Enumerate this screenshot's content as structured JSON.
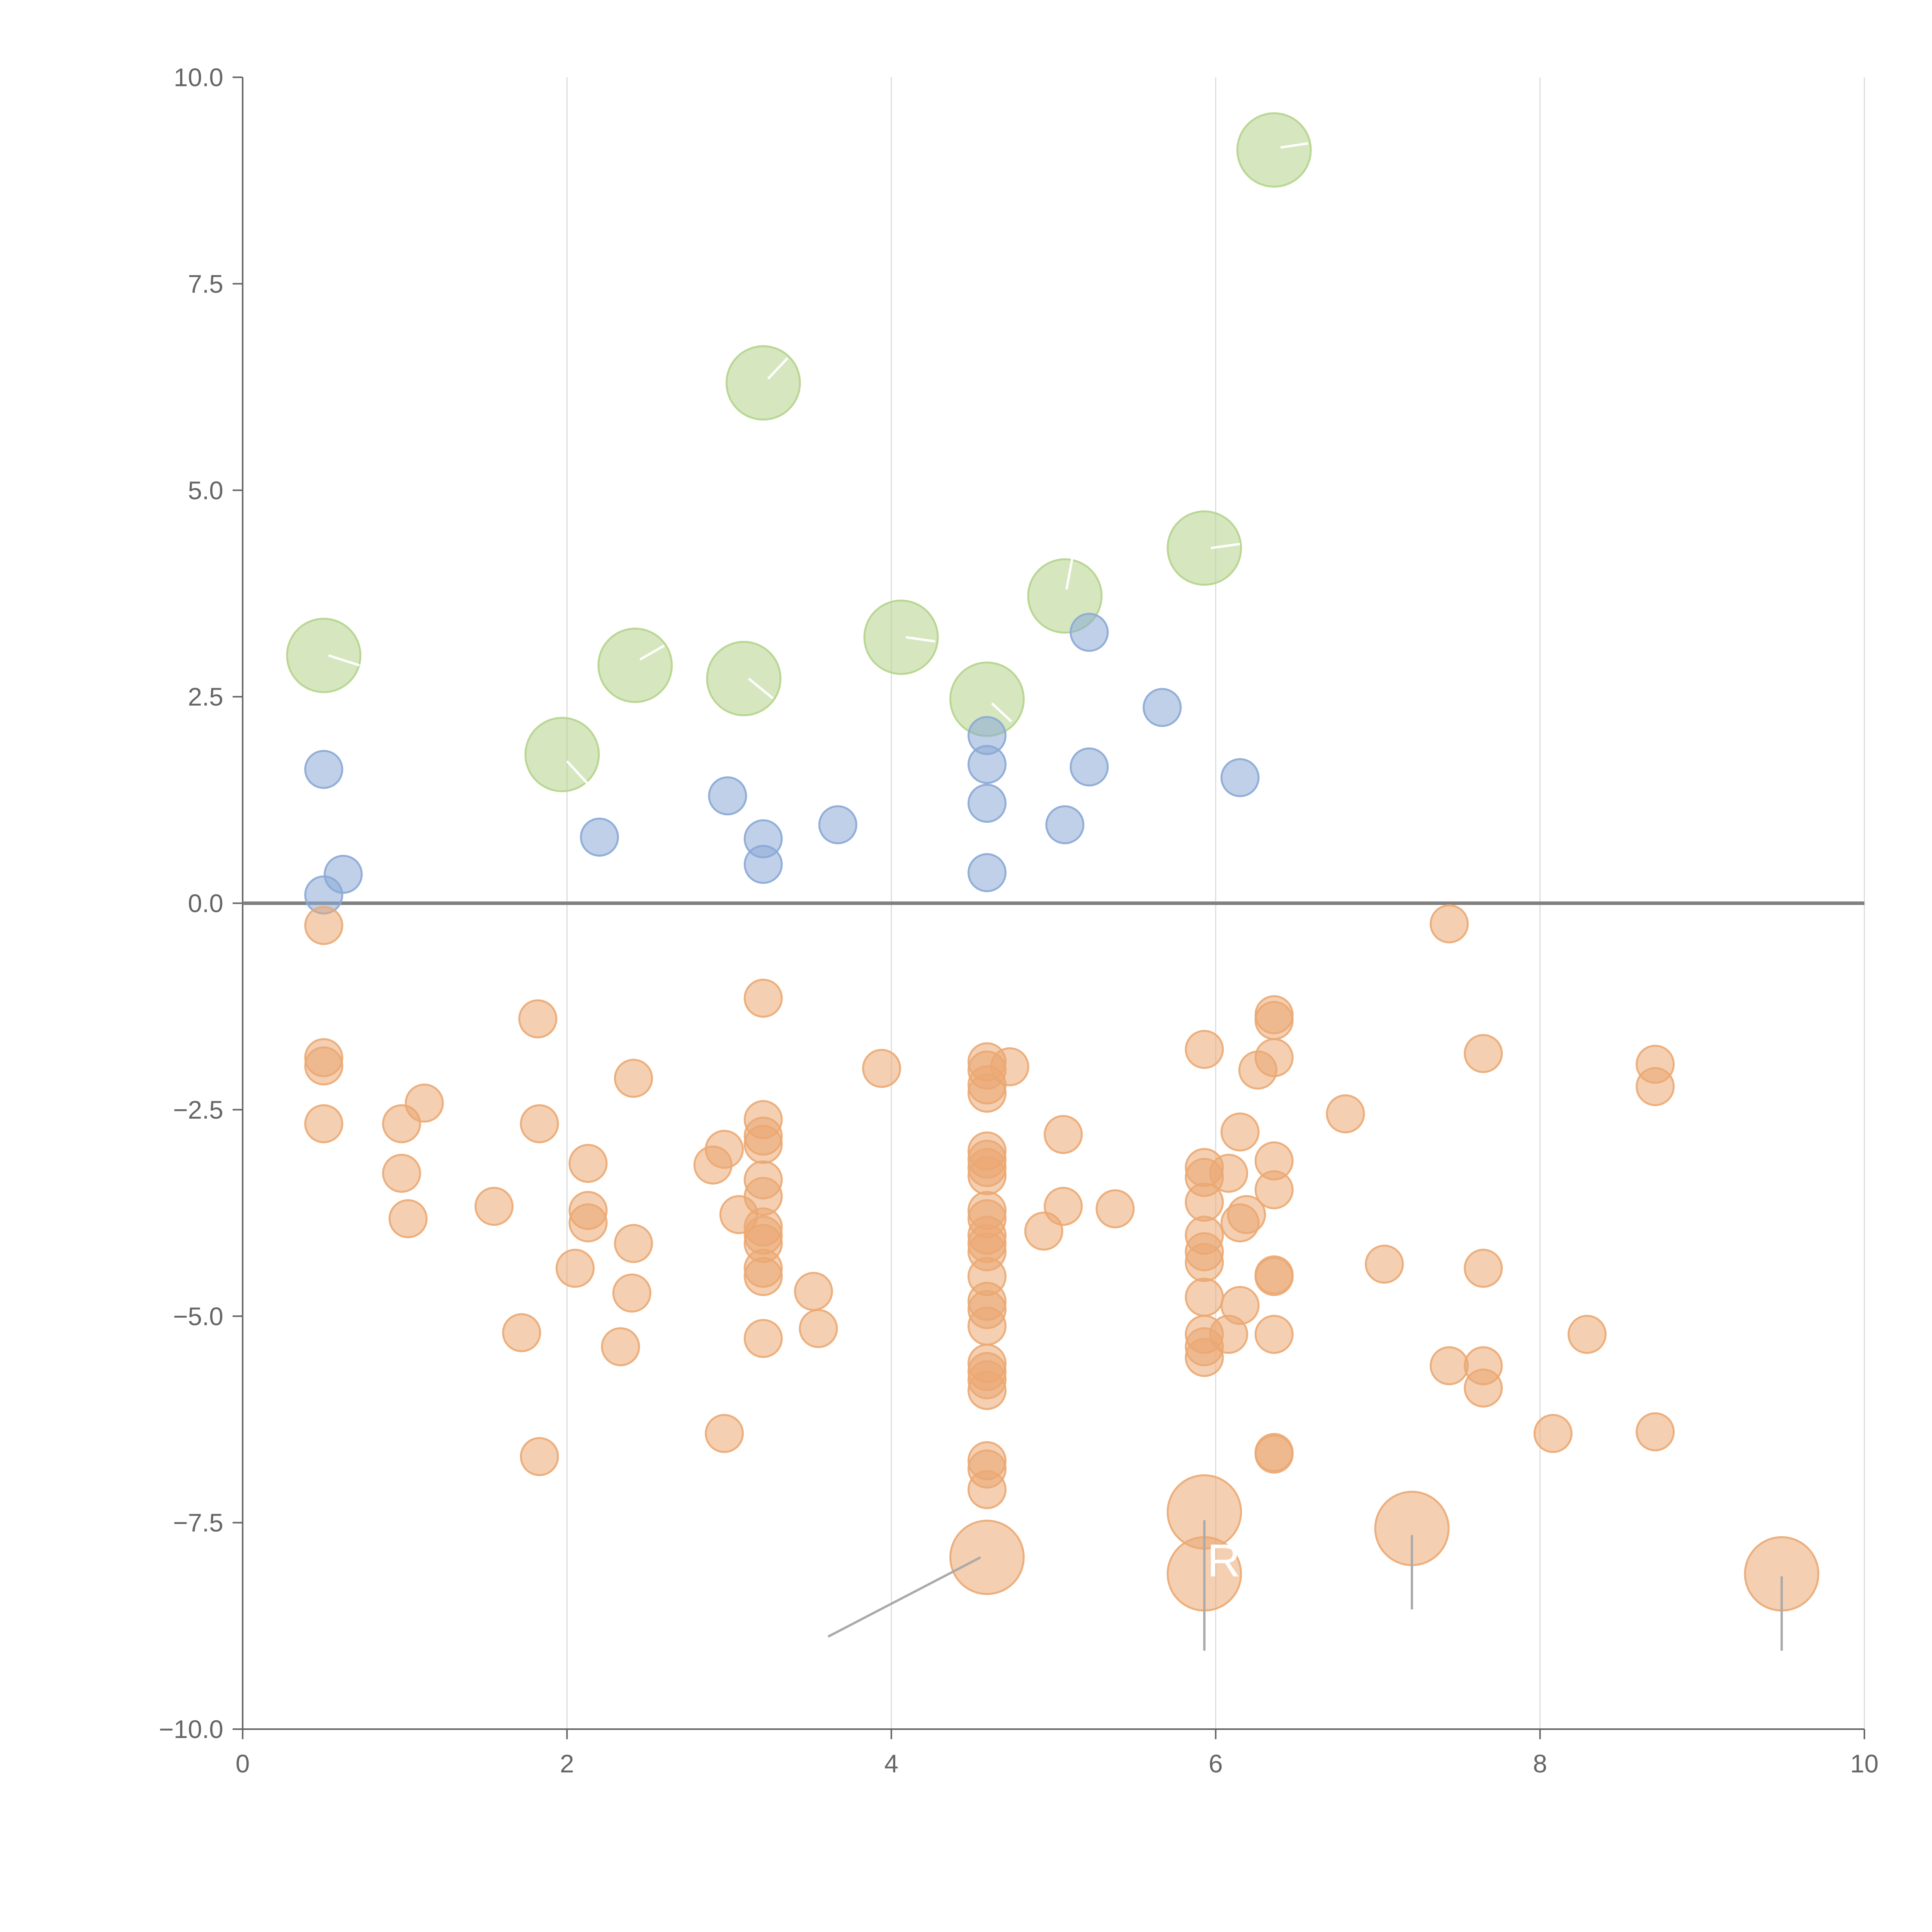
{
  "chart_data": {
    "type": "scatter",
    "title": "",
    "xlabel": "",
    "ylabel": "",
    "xlim": [
      0,
      10
    ],
    "ylim": [
      -10,
      10
    ],
    "x_ticks": [
      "0",
      "2",
      "4",
      "6",
      "8",
      "10"
    ],
    "y_ticks": [
      "10.0",
      "7.5",
      "5.0",
      "2.5",
      "0.0",
      "−2.5",
      "−5.0",
      "−7.5",
      "−10.0"
    ],
    "x_tick_values": [
      0,
      2,
      4,
      6,
      8,
      10
    ],
    "y_tick_values": [
      10,
      7.5,
      5,
      2.5,
      0,
      -2.5,
      -5,
      -7.5,
      -10
    ],
    "grid": "vertical",
    "reference_line_y": 0,
    "colors": {
      "green": "#b5d48c",
      "blue": "#8aa9d6",
      "orange": "#eba872",
      "axis": "#666666",
      "grid": "#dddddd",
      "zero_line": "#808080",
      "leader": "#aaaaaa",
      "label": "#ffffff"
    },
    "series": [
      {
        "name": "green",
        "color": "#b5d48c",
        "size": "large",
        "points": [
          [
            0.5,
            3.0
          ],
          [
            1.97,
            1.8
          ],
          [
            2.42,
            2.88
          ],
          [
            3.09,
            2.72
          ],
          [
            3.21,
            6.3
          ],
          [
            4.06,
            3.22
          ],
          [
            4.59,
            2.47
          ],
          [
            5.07,
            3.72
          ],
          [
            5.93,
            4.3
          ],
          [
            6.36,
            9.12
          ]
        ]
      },
      {
        "name": "blue",
        "color": "#8aa9d6",
        "size": "small",
        "points": [
          [
            0.5,
            1.62
          ],
          [
            0.5,
            0.1
          ],
          [
            0.62,
            0.35
          ],
          [
            2.2,
            0.8
          ],
          [
            2.99,
            1.3
          ],
          [
            3.21,
            0.78
          ],
          [
            3.21,
            0.47
          ],
          [
            3.67,
            0.95
          ],
          [
            4.59,
            2.03
          ],
          [
            4.59,
            1.68
          ],
          [
            4.59,
            1.21
          ],
          [
            4.59,
            0.37
          ],
          [
            5.07,
            0.95
          ],
          [
            5.22,
            3.28
          ],
          [
            5.22,
            1.65
          ],
          [
            5.67,
            2.37
          ],
          [
            6.15,
            1.52
          ]
        ]
      },
      {
        "name": "orange",
        "color": "#eba872",
        "size": "small",
        "points": [
          [
            0.5,
            -0.27
          ],
          [
            0.5,
            -1.87
          ],
          [
            0.5,
            -1.97
          ],
          [
            0.5,
            -2.67
          ],
          [
            0.98,
            -2.67
          ],
          [
            0.98,
            -3.27
          ],
          [
            1.02,
            -3.82
          ],
          [
            1.12,
            -2.42
          ],
          [
            1.55,
            -3.67
          ],
          [
            1.72,
            -5.2
          ],
          [
            1.82,
            -1.4
          ],
          [
            1.83,
            -2.67
          ],
          [
            1.83,
            -6.7
          ],
          [
            2.05,
            -4.42
          ],
          [
            2.13,
            -3.15
          ],
          [
            2.13,
            -3.72
          ],
          [
            2.13,
            -3.87
          ],
          [
            2.33,
            -5.37
          ],
          [
            2.4,
            -4.72
          ],
          [
            2.41,
            -2.12
          ],
          [
            2.41,
            -4.12
          ],
          [
            2.9,
            -3.17
          ],
          [
            2.97,
            -2.98
          ],
          [
            2.97,
            -6.42
          ],
          [
            3.06,
            -3.77
          ],
          [
            3.21,
            -1.15
          ],
          [
            3.21,
            -2.62
          ],
          [
            3.21,
            -2.82
          ],
          [
            3.21,
            -2.92
          ],
          [
            3.21,
            -3.35
          ],
          [
            3.21,
            -3.55
          ],
          [
            3.21,
            -3.92
          ],
          [
            3.21,
            -4.02
          ],
          [
            3.21,
            -4.12
          ],
          [
            3.21,
            -4.42
          ],
          [
            3.21,
            -4.52
          ],
          [
            3.21,
            -5.27
          ],
          [
            3.52,
            -4.7
          ],
          [
            3.55,
            -5.15
          ],
          [
            3.94,
            -2.0
          ],
          [
            4.59,
            -1.92
          ],
          [
            4.59,
            -2.02
          ],
          [
            4.59,
            -2.2
          ],
          [
            4.59,
            -2.3
          ],
          [
            4.59,
            -3.0
          ],
          [
            4.59,
            -3.1
          ],
          [
            4.59,
            -3.2
          ],
          [
            4.59,
            -3.3
          ],
          [
            4.59,
            -3.72
          ],
          [
            4.59,
            -3.82
          ],
          [
            4.59,
            -4.02
          ],
          [
            4.59,
            -4.12
          ],
          [
            4.59,
            -4.22
          ],
          [
            4.59,
            -4.52
          ],
          [
            4.59,
            -4.82
          ],
          [
            4.59,
            -4.92
          ],
          [
            4.59,
            -5.12
          ],
          [
            4.59,
            -5.57
          ],
          [
            4.59,
            -5.67
          ],
          [
            4.59,
            -5.77
          ],
          [
            4.59,
            -5.9
          ],
          [
            4.59,
            -6.75
          ],
          [
            4.59,
            -6.85
          ],
          [
            4.59,
            -7.1
          ],
          [
            4.73,
            -1.98
          ],
          [
            4.94,
            -3.97
          ],
          [
            5.06,
            -2.8
          ],
          [
            5.06,
            -3.67
          ],
          [
            5.38,
            -3.7
          ],
          [
            5.93,
            -1.77
          ],
          [
            5.93,
            -3.2
          ],
          [
            5.93,
            -3.32
          ],
          [
            5.93,
            -3.62
          ],
          [
            5.93,
            -4.02
          ],
          [
            5.93,
            -4.22
          ],
          [
            5.93,
            -4.35
          ],
          [
            5.93,
            -4.77
          ],
          [
            5.93,
            -5.22
          ],
          [
            5.93,
            -5.37
          ],
          [
            5.93,
            -5.5
          ],
          [
            6.08,
            -3.27
          ],
          [
            6.08,
            -5.22
          ],
          [
            6.15,
            -2.77
          ],
          [
            6.15,
            -3.87
          ],
          [
            6.15,
            -4.87
          ],
          [
            6.19,
            -3.77
          ],
          [
            6.26,
            -2.02
          ],
          [
            6.36,
            -1.35
          ],
          [
            6.36,
            -1.42
          ],
          [
            6.36,
            -1.87
          ],
          [
            6.36,
            -3.12
          ],
          [
            6.36,
            -3.47
          ],
          [
            6.36,
            -4.5
          ],
          [
            6.36,
            -4.52
          ],
          [
            6.36,
            -5.22
          ],
          [
            6.36,
            -6.65
          ],
          [
            6.36,
            -6.67
          ],
          [
            6.8,
            -2.55
          ],
          [
            7.04,
            -4.37
          ],
          [
            7.44,
            -0.25
          ],
          [
            7.44,
            -5.6
          ],
          [
            7.65,
            -1.82
          ],
          [
            7.65,
            -4.42
          ],
          [
            7.65,
            -5.6
          ],
          [
            7.65,
            -5.87
          ],
          [
            8.08,
            -6.42
          ],
          [
            8.29,
            -5.22
          ],
          [
            8.71,
            -1.95
          ],
          [
            8.71,
            -2.22
          ],
          [
            8.71,
            -6.4
          ]
        ]
      },
      {
        "name": "orange-large",
        "color": "#eba872",
        "size": "large",
        "points": [
          [
            4.59,
            -7.92
          ],
          [
            5.93,
            -7.37
          ],
          [
            5.93,
            -8.12
          ],
          [
            7.21,
            -7.57
          ],
          [
            9.49,
            -8.12
          ]
        ]
      }
    ],
    "annotations": [
      {
        "text": "R",
        "x": 6.05,
        "y": -8.15
      }
    ],
    "leader_lines": [
      {
        "from": [
          4.55,
          -7.92
        ],
        "to": [
          3.61,
          -8.88
        ],
        "color": "#aaaaaa"
      },
      {
        "from": [
          5.93,
          -7.47
        ],
        "to": [
          5.93,
          -9.05
        ],
        "color": "#aaaaaa"
      },
      {
        "from": [
          7.21,
          -7.65
        ],
        "to": [
          7.21,
          -8.55
        ],
        "color": "#aaaaaa"
      },
      {
        "from": [
          9.49,
          -8.15
        ],
        "to": [
          9.49,
          -9.05
        ],
        "color": "#aaaaaa"
      },
      {
        "from": [
          0.53,
          3.0
        ],
        "to": [
          0.72,
          2.88
        ],
        "color": "#ffffff"
      },
      {
        "from": [
          2.0,
          1.72
        ],
        "to": [
          2.14,
          1.42
        ],
        "color": "#ffffff"
      },
      {
        "from": [
          2.45,
          2.95
        ],
        "to": [
          2.6,
          3.12
        ],
        "color": "#ffffff"
      },
      {
        "from": [
          3.12,
          2.72
        ],
        "to": [
          3.27,
          2.48
        ],
        "color": "#ffffff"
      },
      {
        "from": [
          3.24,
          6.35
        ],
        "to": [
          3.36,
          6.6
        ],
        "color": "#ffffff"
      },
      {
        "from": [
          4.09,
          3.22
        ],
        "to": [
          4.27,
          3.17
        ],
        "color": "#ffffff"
      },
      {
        "from": [
          4.62,
          2.42
        ],
        "to": [
          4.74,
          2.2
        ],
        "color": "#ffffff"
      },
      {
        "from": [
          5.08,
          3.8
        ],
        "to": [
          5.12,
          4.22
        ],
        "color": "#ffffff"
      },
      {
        "from": [
          5.97,
          4.3
        ],
        "to": [
          6.15,
          4.35
        ],
        "color": "#ffffff"
      },
      {
        "from": [
          6.4,
          9.15
        ],
        "to": [
          6.57,
          9.2
        ],
        "color": "#ffffff"
      }
    ]
  }
}
